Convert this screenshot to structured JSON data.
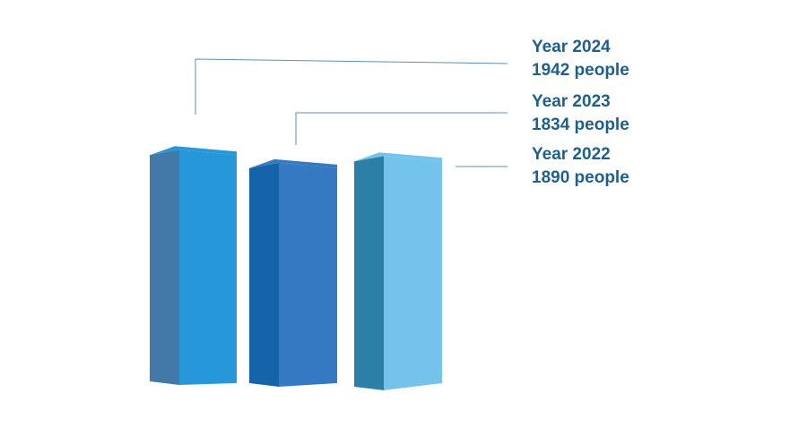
{
  "chart_data": {
    "type": "bar",
    "title": "",
    "xlabel": "",
    "ylabel": "",
    "ylim": [
      0,
      2000
    ],
    "bars": [
      {
        "year_label": "Year 2024",
        "value_label": "1942 people",
        "value": 1942,
        "colors": {
          "front": "#2697D8",
          "side": "#4279A8",
          "top": "#2697D8"
        }
      },
      {
        "year_label": "Year 2023",
        "value_label": "1834 people",
        "value": 1834,
        "colors": {
          "front": "#3479C2",
          "side": "#1563A9",
          "top": "#3479C2"
        }
      },
      {
        "year_label": "Year 2022",
        "value_label": "1890 people",
        "value": 1890,
        "colors": {
          "front": "#74C3EC",
          "side": "#2C80A8",
          "top": "#74C3EC"
        }
      }
    ],
    "label_color": "#1E5F8C",
    "leader_color": "#5B90B5"
  }
}
